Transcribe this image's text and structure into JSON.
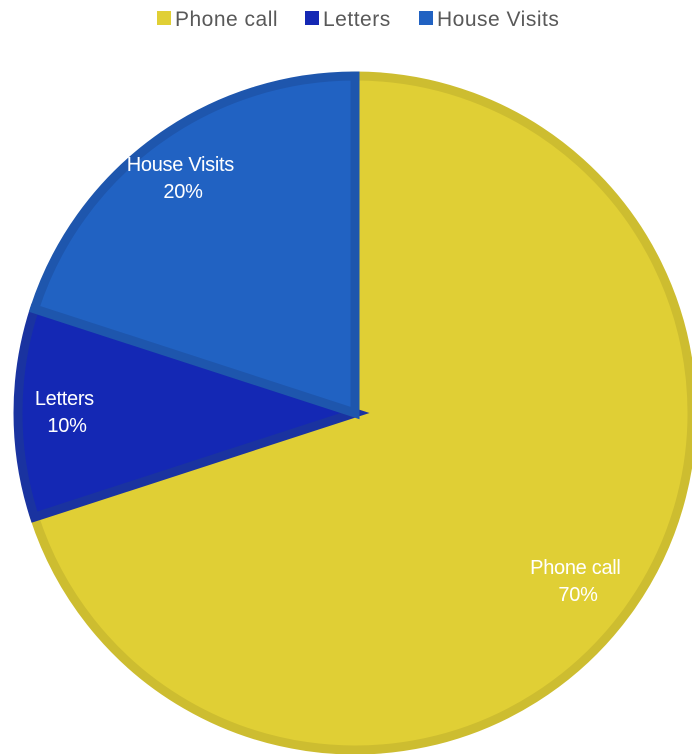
{
  "chart_data": {
    "type": "pie",
    "categories": [
      "Phone call",
      "Letters",
      "House Visits"
    ],
    "values": [
      70,
      10,
      20
    ],
    "percent_labels": [
      "70%",
      "10%",
      "20%"
    ],
    "colors": [
      "#e0cf35",
      "#1428b4",
      "#2162c2"
    ],
    "border_colors": [
      "#cdbd30",
      "#1a33a0",
      "#1e56ad"
    ],
    "legend": {
      "position": "top",
      "entries": [
        "Phone call",
        "Letters",
        "House Visits"
      ]
    },
    "data_labels": {
      "show_category": true,
      "show_percent": true,
      "color": "#ffffff"
    }
  }
}
